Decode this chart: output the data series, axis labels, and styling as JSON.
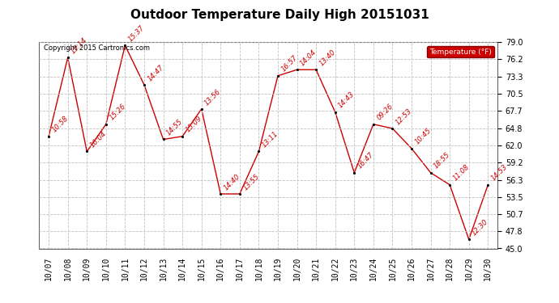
{
  "title": "Outdoor Temperature Daily High 20151031",
  "copyright": "Copyright 2015 Cartronics.com",
  "legend_label": "Temperature (°F)",
  "dates": [
    "10/07",
    "10/08",
    "10/09",
    "10/10",
    "10/11",
    "10/12",
    "10/13",
    "10/14",
    "10/15",
    "10/16",
    "10/17",
    "10/18",
    "10/19",
    "10/20",
    "10/21",
    "10/22",
    "10/23",
    "10/24",
    "10/25",
    "10/26",
    "10/27",
    "10/28",
    "10/29",
    "10/30"
  ],
  "temps": [
    63.5,
    76.5,
    61.0,
    65.5,
    78.5,
    72.0,
    63.0,
    63.5,
    68.0,
    54.0,
    54.0,
    61.0,
    73.5,
    74.5,
    74.5,
    67.5,
    57.5,
    65.5,
    64.8,
    61.5,
    57.5,
    55.5,
    46.5,
    55.5
  ],
  "time_labels": [
    "10:58",
    "15:14",
    "16:04",
    "15:26",
    "15:37",
    "14:47",
    "14:55",
    "15:09",
    "13:56",
    "14:40",
    "13:55",
    "13:11",
    "16:57",
    "14:04",
    "13:40",
    "14:43",
    "16:47",
    "09:26",
    "12:53",
    "10:45",
    "18:55",
    "11:08",
    "12:30",
    "14:53"
  ],
  "ylim": [
    45.0,
    79.0
  ],
  "yticks": [
    45.0,
    47.8,
    50.7,
    53.5,
    56.3,
    59.2,
    62.0,
    64.8,
    67.7,
    70.5,
    73.3,
    76.2,
    79.0
  ],
  "line_color": "#cc0000",
  "marker_color": "#000000",
  "label_color": "#cc0000",
  "background_color": "#ffffff",
  "grid_color": "#c0c0c0",
  "legend_bg": "#cc0000",
  "legend_text_color": "#ffffff",
  "title_fontsize": 11,
  "label_fontsize": 6.0,
  "copyright_fontsize": 6,
  "tick_fontsize": 7
}
